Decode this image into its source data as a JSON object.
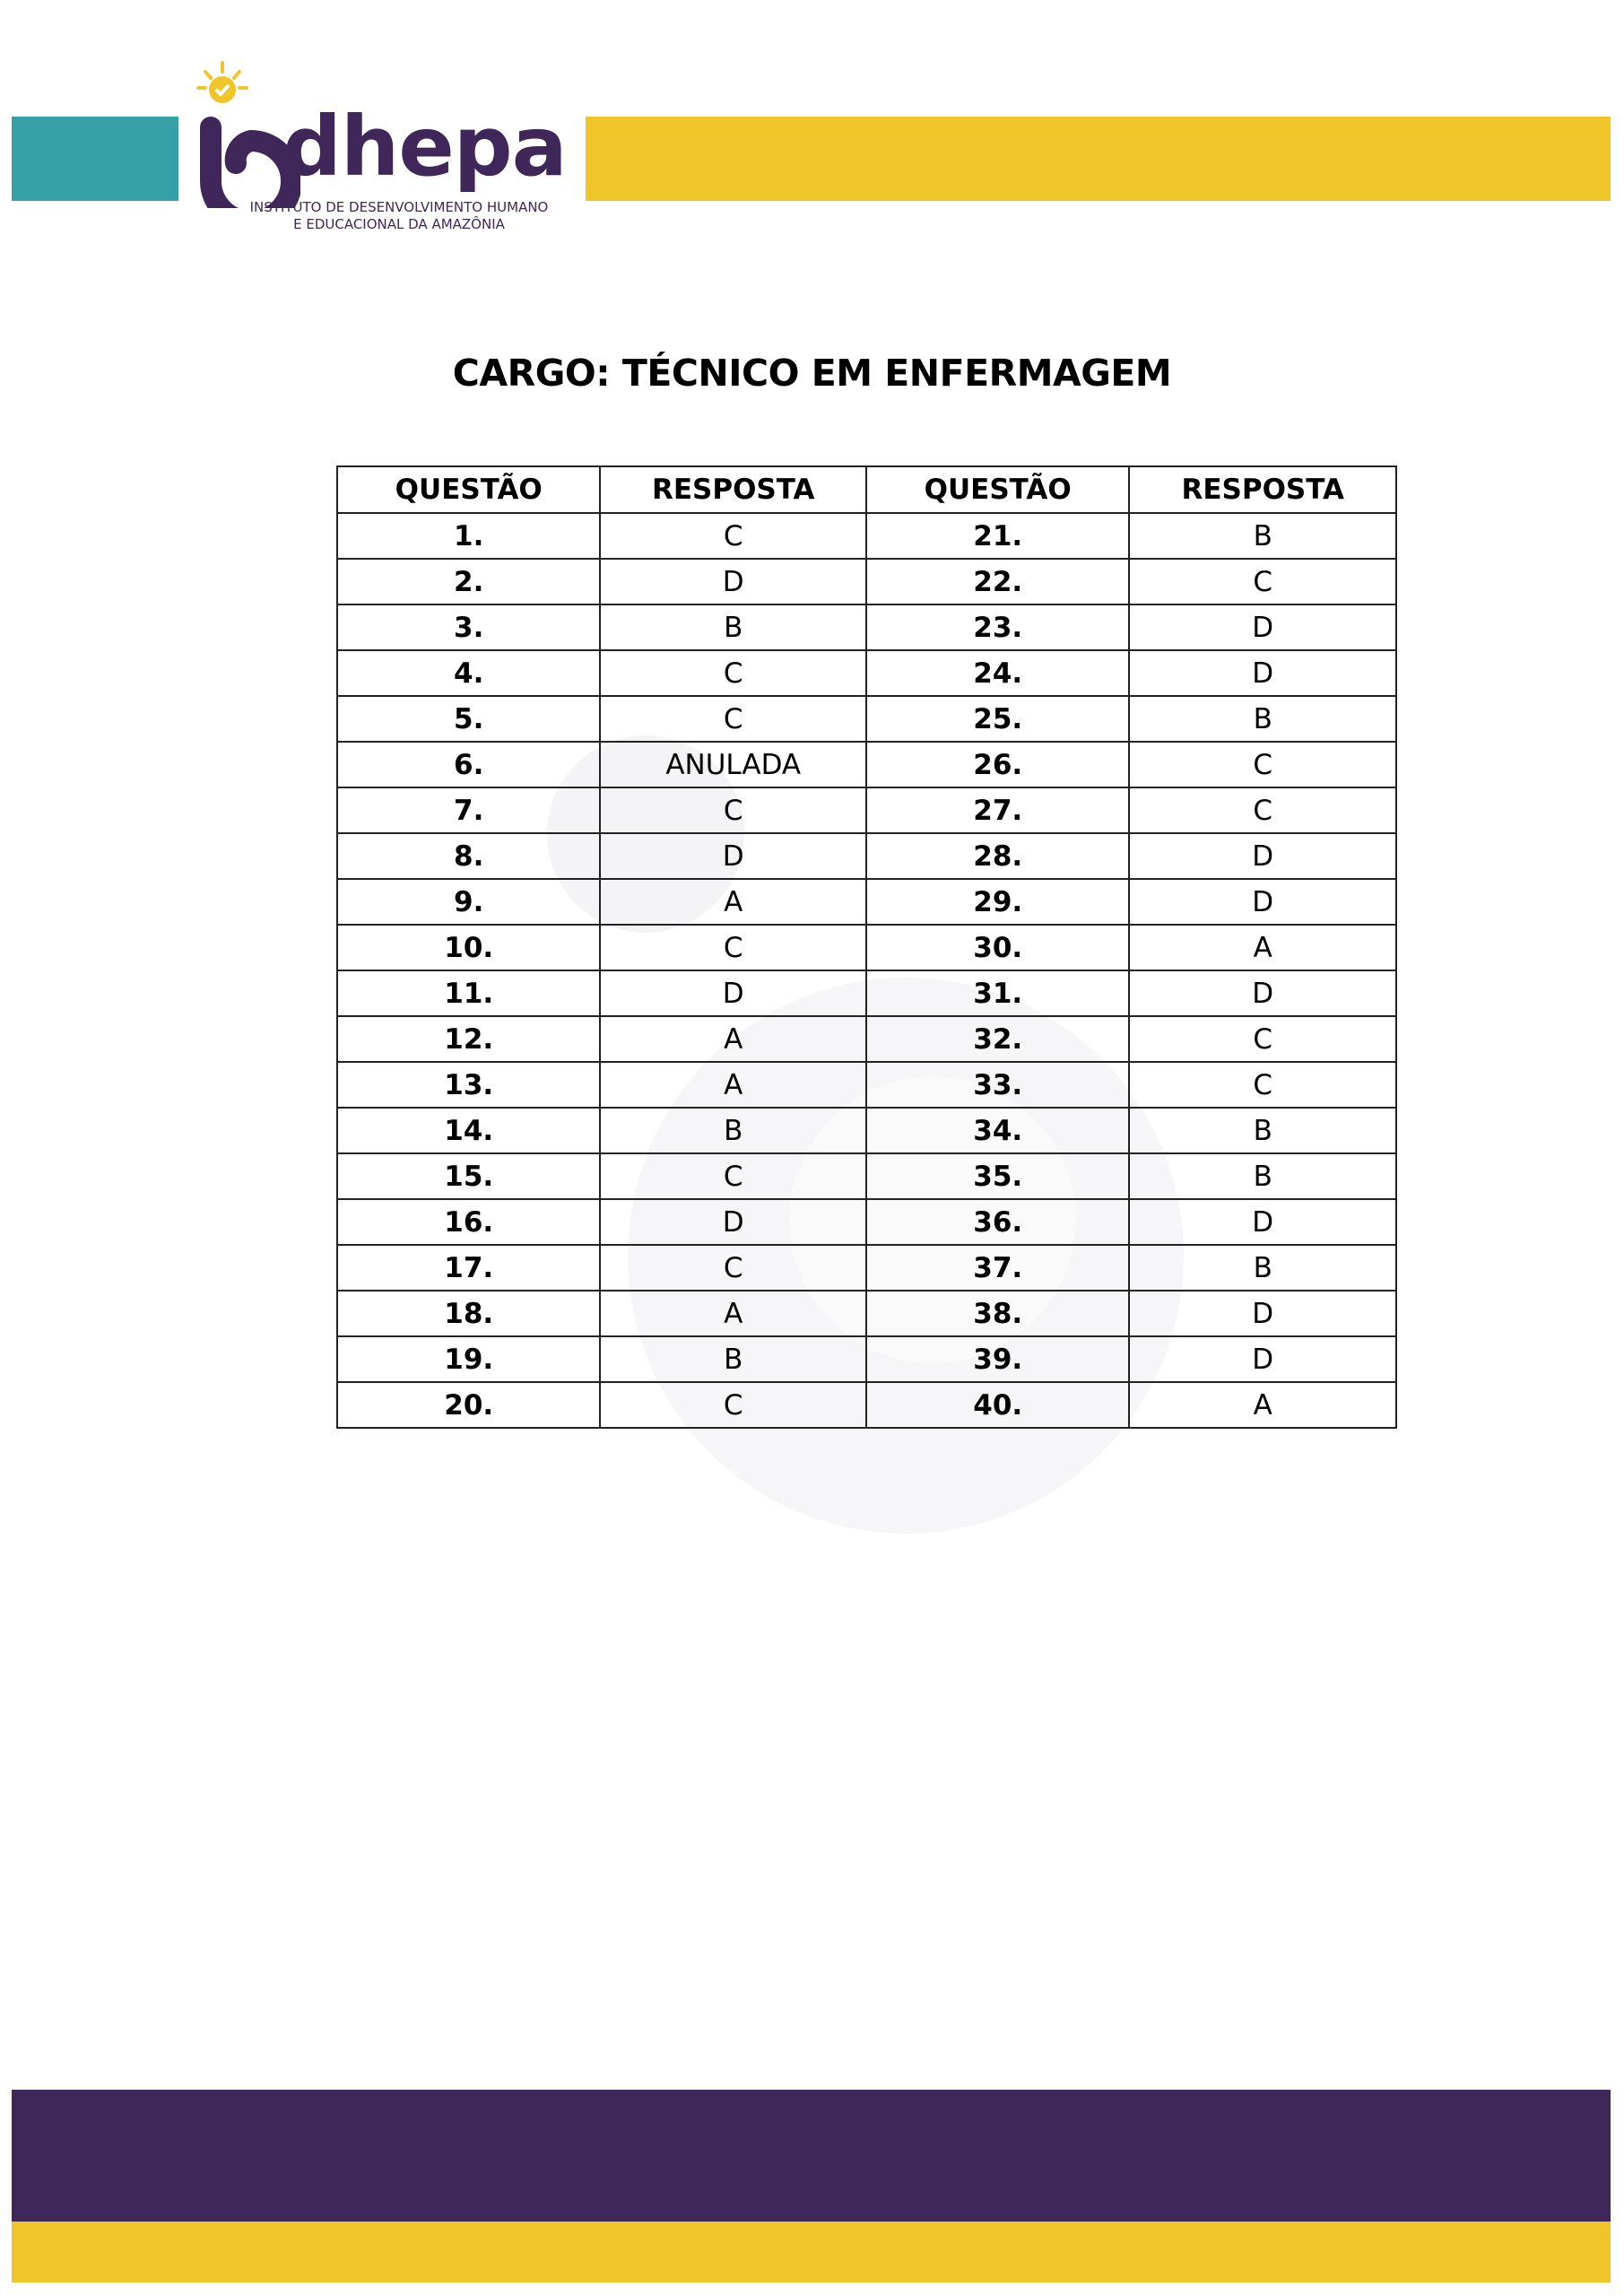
{
  "colors": {
    "teal": "#35a1a7",
    "yellow": "#efc52a",
    "purple": "#3f2759"
  },
  "logo": {
    "name": "dhepa",
    "subtitle_line1": "INSTITUTO DE DESENVOLVIMENTO HUMANO",
    "subtitle_line2": "E EDUCACIONAL DA AMAZÔNIA"
  },
  "title": "CARGO: TÉCNICO EM ENFERMAGEM",
  "table": {
    "headers": [
      "QUESTÃO",
      "RESPOSTA",
      "QUESTÃO",
      "RESPOSTA"
    ],
    "rows": [
      {
        "q1": "1.",
        "a1": "C",
        "q2": "21.",
        "a2": "B"
      },
      {
        "q1": "2.",
        "a1": "D",
        "q2": "22.",
        "a2": "C"
      },
      {
        "q1": "3.",
        "a1": "B",
        "q2": "23.",
        "a2": "D"
      },
      {
        "q1": "4.",
        "a1": "C",
        "q2": "24.",
        "a2": "D"
      },
      {
        "q1": "5.",
        "a1": "C",
        "q2": "25.",
        "a2": "B"
      },
      {
        "q1": "6.",
        "a1": "ANULADA",
        "q2": "26.",
        "a2": "C"
      },
      {
        "q1": "7.",
        "a1": "C",
        "q2": "27.",
        "a2": "C"
      },
      {
        "q1": "8.",
        "a1": "D",
        "q2": "28.",
        "a2": "D"
      },
      {
        "q1": "9.",
        "a1": "A",
        "q2": "29.",
        "a2": "D"
      },
      {
        "q1": "10.",
        "a1": "C",
        "q2": "30.",
        "a2": "A"
      },
      {
        "q1": "11.",
        "a1": "D",
        "q2": "31.",
        "a2": "D"
      },
      {
        "q1": "12.",
        "a1": "A",
        "q2": "32.",
        "a2": "C"
      },
      {
        "q1": "13.",
        "a1": "A",
        "q2": "33.",
        "a2": "C"
      },
      {
        "q1": "14.",
        "a1": "B",
        "q2": "34.",
        "a2": "B"
      },
      {
        "q1": "15.",
        "a1": "C",
        "q2": "35.",
        "a2": "B"
      },
      {
        "q1": "16.",
        "a1": "D",
        "q2": "36.",
        "a2": "D"
      },
      {
        "q1": "17.",
        "a1": "C",
        "q2": "37.",
        "a2": "B"
      },
      {
        "q1": "18.",
        "a1": "A",
        "q2": "38.",
        "a2": "D"
      },
      {
        "q1": "19.",
        "a1": "B",
        "q2": "39.",
        "a2": "D"
      },
      {
        "q1": "20.",
        "a1": "C",
        "q2": "40.",
        "a2": "A"
      }
    ]
  }
}
